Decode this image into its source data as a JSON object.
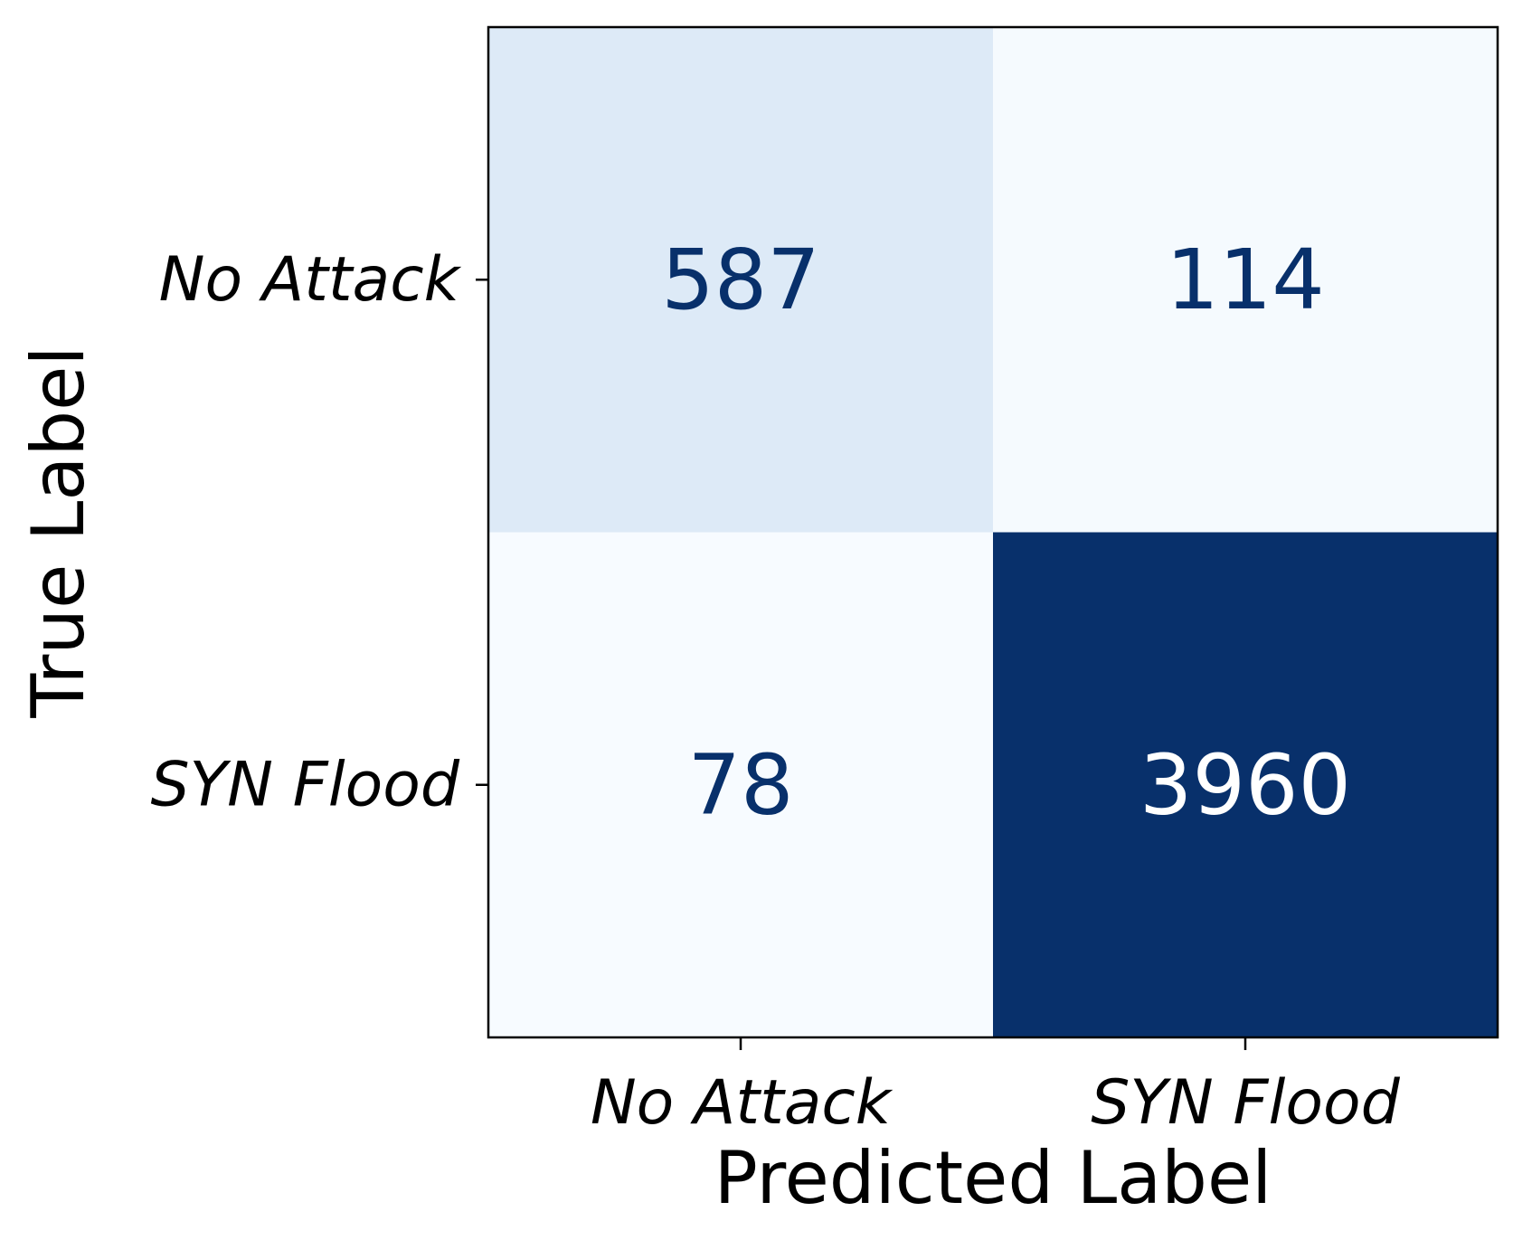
{
  "chart_data": {
    "type": "heatmap",
    "title": "",
    "xlabel": "Predicted Label",
    "ylabel": "True Label",
    "x_categories": [
      "No Attack",
      "SYN Flood"
    ],
    "y_categories": [
      "No Attack",
      "SYN Flood"
    ],
    "matrix": [
      [
        587,
        114
      ],
      [
        78,
        3960
      ]
    ],
    "colormap": "Blues",
    "colors": {
      "low": "#f7fbff",
      "high": "#08306b",
      "text_dark": "#08306b",
      "text_light": "#ffffff"
    },
    "grid": false,
    "colorbar": false
  }
}
